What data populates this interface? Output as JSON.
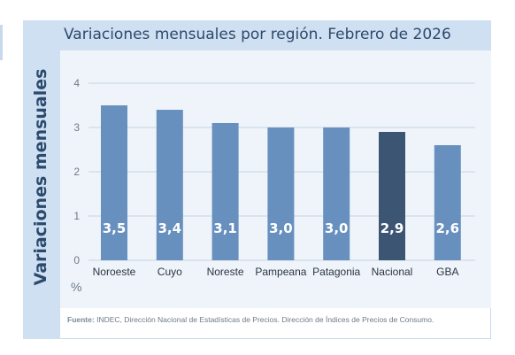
{
  "chart_data": {
    "type": "bar",
    "title": "Variaciones mensuales por región. Febrero de 2026",
    "ylabel": "Variaciones mensuales",
    "yunit": "%",
    "categories": [
      "Noroeste",
      "Cuyo",
      "Noreste",
      "Pampeana",
      "Patagonia",
      "Nacional",
      "GBA"
    ],
    "values": [
      3.5,
      3.4,
      3.1,
      3.0,
      3.0,
      2.9,
      2.6
    ],
    "value_labels": [
      "3,5",
      "3,4",
      "3,1",
      "3,0",
      "3,0",
      "2,9",
      "2,6"
    ],
    "highlight_category": "Nacional",
    "ylim": [
      0,
      4
    ],
    "yticks": [
      "0",
      "1",
      "2",
      "3",
      "4"
    ],
    "grid": true,
    "colors": {
      "bar": "#6790bf",
      "highlight": "#3b5573",
      "grid": "#c7d3df",
      "header": "#cfe0f3"
    }
  },
  "source": {
    "label": "Fuente:",
    "text": "INDEC, Dirección Nacional de Estadísticas de Precios. Dirección de Índices de Precios de Consumo."
  }
}
